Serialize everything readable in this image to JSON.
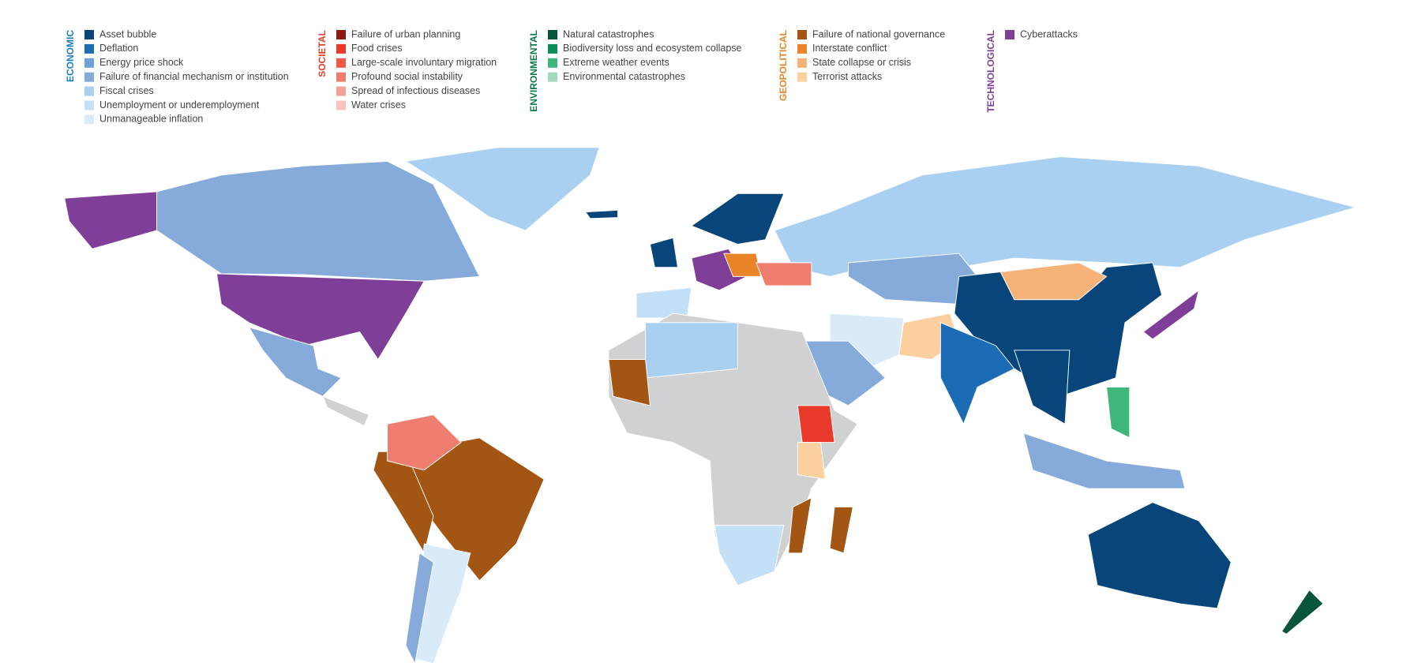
{
  "legend": {
    "groups": [
      {
        "title": "ECONOMIC",
        "color": "#1a7fc1",
        "items": [
          {
            "label": "Asset bubble",
            "color": "#08457a"
          },
          {
            "label": "Deflation",
            "color": "#1c6cb5"
          },
          {
            "label": "Energy price shock",
            "color": "#6fa0da"
          },
          {
            "label": "Failure of financial mechanism or institution",
            "color": "#86abdb"
          },
          {
            "label": "Fiscal crises",
            "color": "#a9d0f0"
          },
          {
            "label": "Unemployment or underemployment",
            "color": "#c4e0f6"
          },
          {
            "label": "Unmanageable inflation",
            "color": "#d9ebf9"
          }
        ]
      },
      {
        "title": "SOCIETAL",
        "color": "#e0402d",
        "items": [
          {
            "label": "Failure of urban planning",
            "color": "#8b1a12"
          },
          {
            "label": "Food crises",
            "color": "#e8392a"
          },
          {
            "label": "Large-scale involuntary migration",
            "color": "#ee5a47"
          },
          {
            "label": "Profound social instability",
            "color": "#f07e70"
          },
          {
            "label": "Spread of infectious diseases",
            "color": "#f4a199"
          },
          {
            "label": "Water crises",
            "color": "#f8c3bd"
          }
        ]
      },
      {
        "title": "ENVIRONMENTAL",
        "color": "#0b7a4a",
        "items": [
          {
            "label": "Natural catastrophes",
            "color": "#07563a"
          },
          {
            "label": "Biodiversity loss and ecosystem collapse",
            "color": "#0e8c5a"
          },
          {
            "label": "Extreme weather events",
            "color": "#3fb67a"
          },
          {
            "label": "Environmental catastrophes",
            "color": "#a4d8bc"
          }
        ]
      },
      {
        "title": "GEOPOLITICAL",
        "color": "#e98528",
        "items": [
          {
            "label": "Failure of national governance",
            "color": "#a35513"
          },
          {
            "label": "Interstate conflict",
            "color": "#e98528"
          },
          {
            "label": "State collapse or crisis",
            "color": "#f5b37a"
          },
          {
            "label": "Terrorist attacks",
            "color": "#fbcf9e"
          }
        ]
      },
      {
        "title": "TECHNOLOGICAL",
        "color": "#7f3f98",
        "items": [
          {
            "label": "Cyberattacks",
            "color": "#7f3f98"
          }
        ]
      }
    ]
  }
}
